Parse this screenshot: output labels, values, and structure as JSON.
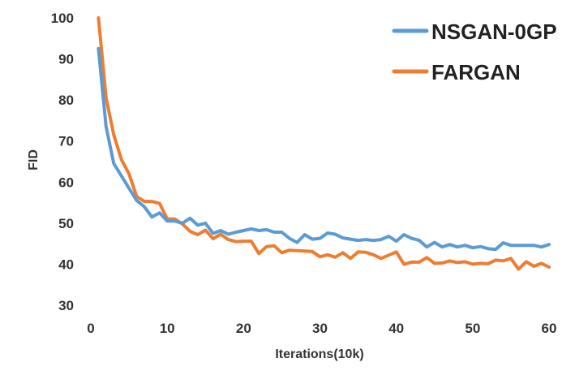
{
  "chart_data": {
    "type": "line",
    "title": "",
    "xlabel": "Iterations(10k)",
    "ylabel": "FID",
    "xlim": [
      0,
      60
    ],
    "ylim": [
      30,
      100
    ],
    "xticks": [
      0,
      10,
      20,
      30,
      40,
      50,
      60
    ],
    "yticks": [
      30,
      40,
      50,
      60,
      70,
      80,
      90,
      100
    ],
    "grid": false,
    "legend": "top-right",
    "x": [
      1,
      2,
      3,
      4,
      5,
      6,
      7,
      8,
      9,
      10,
      11,
      12,
      13,
      14,
      15,
      16,
      17,
      18,
      19,
      20,
      21,
      22,
      23,
      24,
      25,
      26,
      27,
      28,
      29,
      30,
      31,
      32,
      33,
      34,
      35,
      36,
      37,
      38,
      39,
      40,
      41,
      42,
      43,
      44,
      45,
      46,
      47,
      48,
      49,
      50,
      51,
      52,
      53,
      54,
      55,
      56,
      57,
      58,
      59,
      60
    ],
    "series": [
      {
        "name": "NSGAN-0GP",
        "color": "#5B9BD5",
        "values": [
          92.5,
          73.5,
          64.5,
          61.5,
          58.5,
          55.5,
          54.0,
          51.5,
          52.5,
          50.5,
          50.5,
          50.0,
          51.2,
          49.5,
          50.0,
          47.5,
          48.2,
          47.3,
          47.8,
          48.2,
          48.6,
          48.2,
          48.4,
          47.8,
          47.8,
          46.3,
          45.3,
          47.2,
          46.1,
          46.3,
          47.6,
          47.3,
          46.4,
          46.1,
          45.8,
          46.0,
          45.8,
          46.0,
          46.8,
          45.6,
          47.2,
          46.3,
          45.8,
          44.2,
          45.3,
          44.2,
          44.8,
          44.2,
          44.6,
          44.0,
          44.3,
          43.8,
          43.6,
          45.2,
          44.6,
          44.6,
          44.6,
          44.6,
          44.2,
          44.8
        ]
      },
      {
        "name": "FARGAN",
        "color": "#ED7D31",
        "values": [
          100,
          80.5,
          71.5,
          65.5,
          62.0,
          56.5,
          55.3,
          55.3,
          54.8,
          51.0,
          51.0,
          49.8,
          48.0,
          47.2,
          48.3,
          46.2,
          47.3,
          46.0,
          45.5,
          45.6,
          45.6,
          42.6,
          44.3,
          44.5,
          42.8,
          43.4,
          43.3,
          43.2,
          43.1,
          41.8,
          42.3,
          41.7,
          42.8,
          41.4,
          43.0,
          42.9,
          42.3,
          41.4,
          42.2,
          43.0,
          40.0,
          40.5,
          40.5,
          41.6,
          40.2,
          40.3,
          40.8,
          40.4,
          40.6,
          40.0,
          40.2,
          40.1,
          41.0,
          40.8,
          41.4,
          38.8,
          40.6,
          39.5,
          40.2,
          39.3
        ]
      }
    ]
  }
}
